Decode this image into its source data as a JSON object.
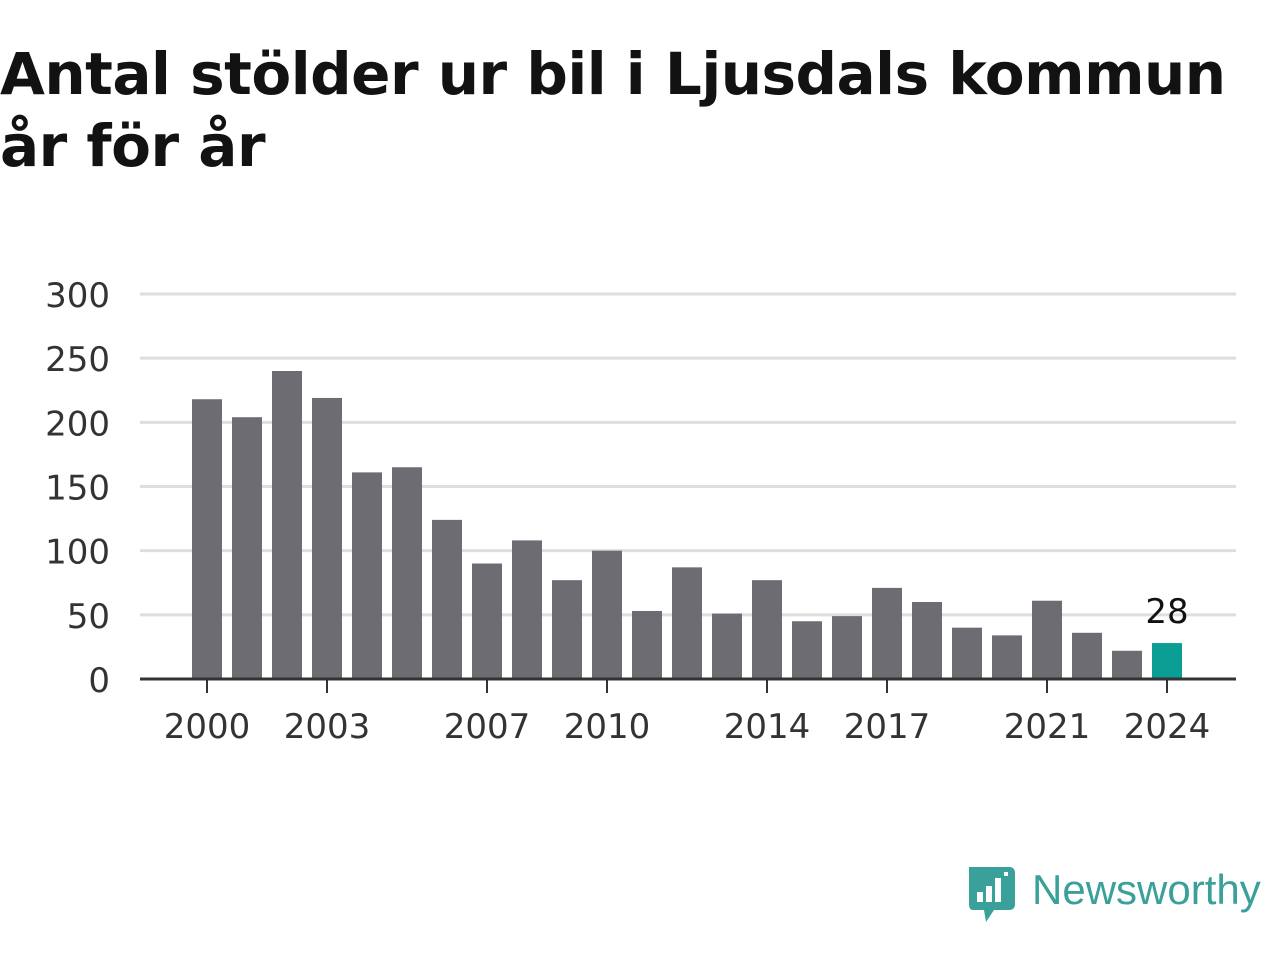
{
  "title_lines": [
    "Antal stölder ur bil i Ljusdals kommun",
    "år för år"
  ],
  "brand": {
    "name": "Newsworthy",
    "color": "#3aa09a",
    "icon": "newsworthy-logo-icon"
  },
  "colors": {
    "bar": "#6d6c72",
    "highlight": "#0a9e94",
    "grid": "#dedede",
    "axis": "#333333",
    "text": "#333333"
  },
  "chart_data": {
    "type": "bar",
    "title": "Antal stölder ur bil i Ljusdals kommun år för år",
    "categories": [
      "2000",
      "2001",
      "2002",
      "2003",
      "2004",
      "2005",
      "2006",
      "2007",
      "2008",
      "2009",
      "2010",
      "2011",
      "2012",
      "2013",
      "2014",
      "2015",
      "2016",
      "2017",
      "2018",
      "2019",
      "2020",
      "2021",
      "2022",
      "2023",
      "2024"
    ],
    "values": [
      218,
      204,
      240,
      219,
      161,
      165,
      124,
      90,
      108,
      77,
      100,
      53,
      87,
      51,
      77,
      45,
      49,
      71,
      60,
      40,
      34,
      61,
      36,
      22,
      28
    ],
    "xticks": [
      "2000",
      "2003",
      "2007",
      "2010",
      "2014",
      "2017",
      "2021",
      "2024"
    ],
    "yticks": [
      0,
      50,
      100,
      150,
      200,
      250,
      300
    ],
    "ylim": [
      0,
      300
    ],
    "highlight_category": "2024",
    "data_labels": [
      {
        "category": "2024",
        "text": "28"
      }
    ],
    "grid": true,
    "legend": "none",
    "xlabel": "",
    "ylabel": ""
  }
}
